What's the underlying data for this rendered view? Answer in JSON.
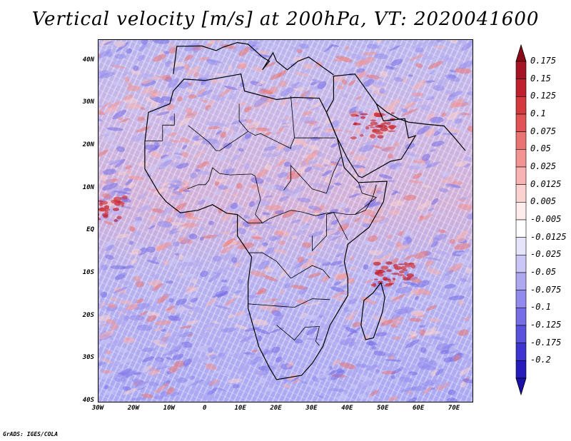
{
  "title": "Vertical velocity [m/s] at 200hPa, VT: 2020041600",
  "map": {
    "projection": "lat-lon",
    "lon_range": [
      -30,
      75
    ],
    "lat_range": [
      -40,
      45
    ],
    "lat_ticks": [
      {
        "value": 40,
        "label": "40N"
      },
      {
        "value": 30,
        "label": "30N"
      },
      {
        "value": 20,
        "label": "20N"
      },
      {
        "value": 10,
        "label": "10N"
      },
      {
        "value": 0,
        "label": "EQ"
      },
      {
        "value": -10,
        "label": "10S"
      },
      {
        "value": -20,
        "label": "20S"
      },
      {
        "value": -30,
        "label": "30S"
      },
      {
        "value": -40,
        "label": "40S"
      }
    ],
    "lon_ticks": [
      {
        "value": -30,
        "label": "30W"
      },
      {
        "value": -20,
        "label": "20W"
      },
      {
        "value": -10,
        "label": "10W"
      },
      {
        "value": 0,
        "label": "0"
      },
      {
        "value": 10,
        "label": "10E"
      },
      {
        "value": 20,
        "label": "20E"
      },
      {
        "value": 30,
        "label": "30E"
      },
      {
        "value": 40,
        "label": "40E"
      },
      {
        "value": 50,
        "label": "50E"
      },
      {
        "value": 60,
        "label": "60E"
      },
      {
        "value": 70,
        "label": "70E"
      }
    ],
    "features": [
      "africa-coastline",
      "arabian-peninsula-coastline",
      "madagascar-coastline",
      "country-borders"
    ],
    "highlights": [
      {
        "label": "",
        "lon": -28,
        "lat": 5,
        "value": 0.15
      },
      {
        "label": "",
        "lon": 53,
        "lat": -10,
        "value": 0.15
      },
      {
        "label": "",
        "lon": 47,
        "lat": 25,
        "value": 0.125
      }
    ]
  },
  "colorbar": {
    "units": "m/s",
    "orientation": "vertical",
    "levels": [
      {
        "label": "0.175",
        "color": "#a51424"
      },
      {
        "label": "0.15",
        "color": "#c0202e"
      },
      {
        "label": "0.125",
        "color": "#d23a3e"
      },
      {
        "label": "0.1",
        "color": "#e05456"
      },
      {
        "label": "0.075",
        "color": "#ea7472"
      },
      {
        "label": "0.05",
        "color": "#f29492"
      },
      {
        "label": "0.025",
        "color": "#f7b4b2"
      },
      {
        "label": "0.0125",
        "color": "#fad2d0"
      },
      {
        "label": "0.005",
        "color": "#fdeceb"
      },
      {
        "label": "-0.005",
        "color": "#ffffff"
      },
      {
        "label": "-0.0125",
        "color": "#e6e4fb"
      },
      {
        "label": "-0.025",
        "color": "#cac6f6"
      },
      {
        "label": "-0.05",
        "color": "#aea8f1"
      },
      {
        "label": "-0.075",
        "color": "#928aec"
      },
      {
        "label": "-0.1",
        "color": "#766ee5"
      },
      {
        "label": "-0.125",
        "color": "#5a52dc"
      },
      {
        "label": "-0.175",
        "color": "#3e34cf"
      },
      {
        "label": "-0.2",
        "color": "#261cbb"
      }
    ],
    "bottom_arrow_color": "#1a0fa6",
    "top_arrow_color": "#8a0a18"
  },
  "credit": "GrADS: IGES/COLA"
}
